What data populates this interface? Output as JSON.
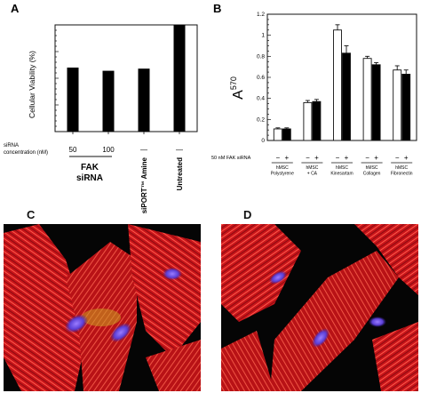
{
  "panels": {
    "a": "A",
    "b": "B",
    "c": "C",
    "d": "D"
  },
  "chart_data": [
    {
      "type": "bar",
      "panel": "A",
      "ylabel": "Cellular Viability (%)",
      "ylim": [
        0,
        100
      ],
      "categories": [
        "50",
        "100",
        "siPORT™ Amine",
        "Untreated"
      ],
      "values": [
        60,
        57,
        59,
        100
      ],
      "bar_color": "#000000",
      "row_label": "siRNA concentration (nM)",
      "col_texts": [
        "50",
        "100",
        "—",
        "—"
      ],
      "group_label_line1": "FAK",
      "group_label_line2": "siRNA",
      "rotated_labels": [
        "siPORT™ Amine",
        "Untreated"
      ]
    },
    {
      "type": "bar",
      "panel": "B",
      "ylabel": "A",
      "ylabel_sup": "570",
      "ylim": [
        0,
        1.2
      ],
      "yticks": [
        "0",
        "0.2",
        "0.4",
        "0.6",
        "0.8",
        "1",
        "1.2"
      ],
      "minor_step": 0.05,
      "row_label": "50 nM FAK siRNA",
      "group_signs": [
        "−",
        "+"
      ],
      "categories": [
        "hMSC Polystyrene",
        "hMSC + CA",
        "hMSC Kinesartam",
        "hMSC Collagen",
        "hMSC Fibronectin"
      ],
      "category_lines": [
        [
          "hMSC",
          "Polystyrene"
        ],
        [
          "hMSC",
          "+ CA"
        ],
        [
          "hMSC",
          "Kinesartam"
        ],
        [
          "hMSC",
          "Collagen"
        ],
        [
          "hMSC",
          "Fibronectin"
        ]
      ],
      "series": [
        {
          "name": "−",
          "color": "#ffffff",
          "values": [
            0.11,
            0.36,
            1.05,
            0.78,
            0.67
          ],
          "errors": [
            0.01,
            0.02,
            0.05,
            0.02,
            0.04
          ]
        },
        {
          "name": "+",
          "color": "#000000",
          "values": [
            0.11,
            0.37,
            0.83,
            0.72,
            0.63
          ],
          "errors": [
            0.01,
            0.02,
            0.07,
            0.02,
            0.04
          ]
        }
      ]
    }
  ]
}
